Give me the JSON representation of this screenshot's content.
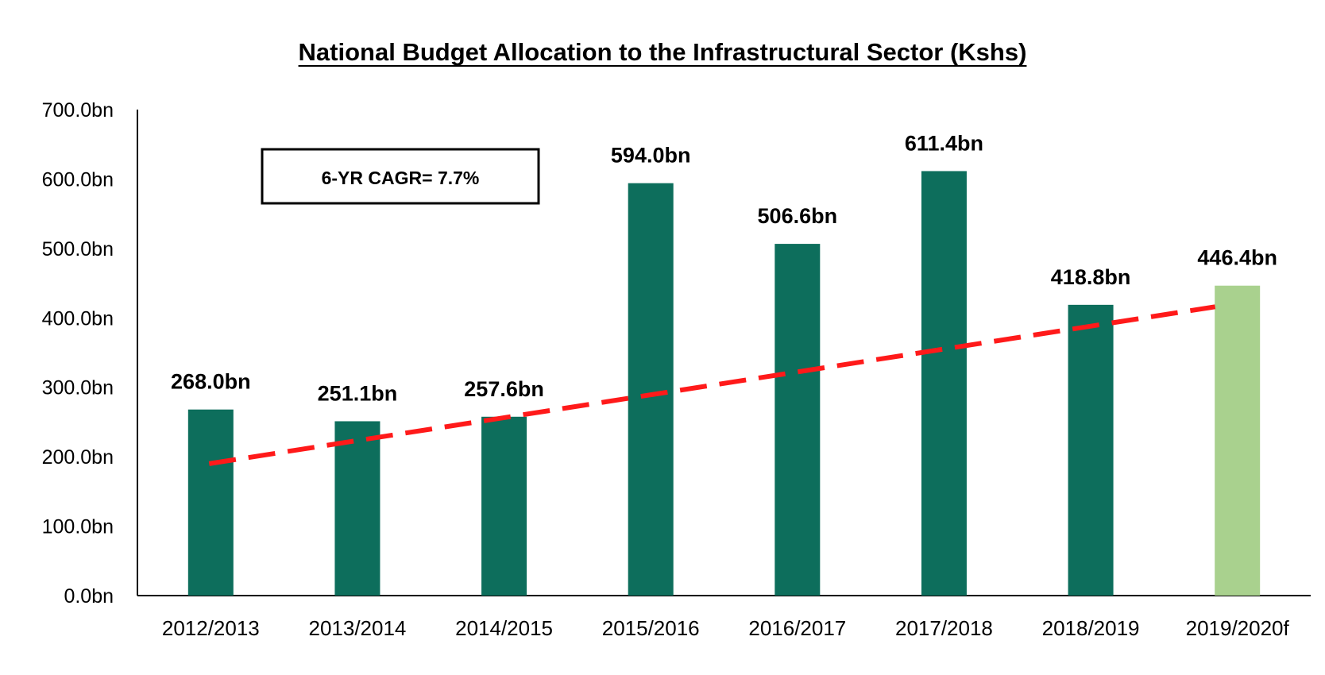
{
  "chart_data": {
    "type": "bar",
    "title": "National Budget Allocation to the Infrastructural Sector (Kshs)",
    "xlabel": "",
    "ylabel": "",
    "ylim": [
      0,
      700
    ],
    "yticks": [
      0,
      100,
      200,
      300,
      400,
      500,
      600,
      700
    ],
    "ytick_labels": [
      "0.0bn",
      "100.0bn",
      "200.0bn",
      "300.0bn",
      "400.0bn",
      "500.0bn",
      "600.0bn",
      "700.0bn"
    ],
    "categories": [
      "2012/2013",
      "2013/2014",
      "2014/2015",
      "2015/2016",
      "2016/2017",
      "2017/2018",
      "2018/2019",
      "2019/2020f"
    ],
    "values": [
      268.0,
      251.1,
      257.6,
      594.0,
      506.6,
      611.4,
      418.8,
      446.4
    ],
    "data_labels": [
      "268.0bn",
      "251.1bn",
      "257.6bn",
      "594.0bn",
      "506.6bn",
      "611.4bn",
      "418.8bn",
      "446.4bn"
    ],
    "bar_colors": [
      "#0d6e5c",
      "#0d6e5c",
      "#0d6e5c",
      "#0d6e5c",
      "#0d6e5c",
      "#0d6e5c",
      "#0d6e5c",
      "#a9d18e"
    ],
    "trendline": {
      "style": "dashed",
      "color": "#ff1a1a",
      "start_value": 190,
      "end_value": 416
    },
    "annotation": "6-YR CAGR= 7.7%",
    "grid": false,
    "legend": "none"
  }
}
